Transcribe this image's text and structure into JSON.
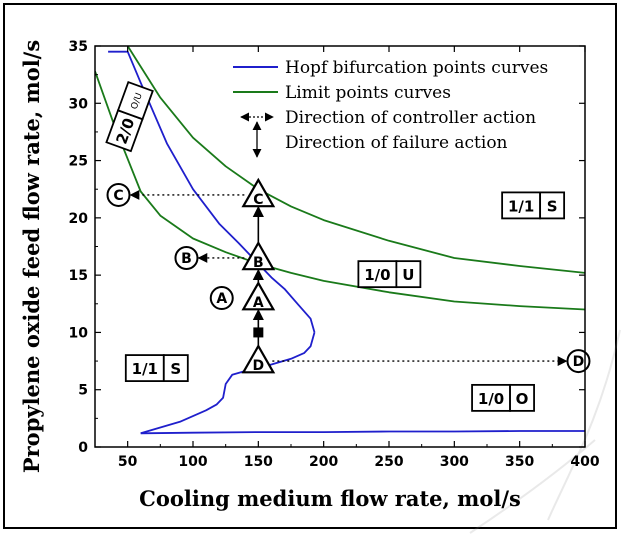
{
  "chart_data": {
    "type": "line",
    "xlabel": "Cooling medium flow rate, mol/s",
    "ylabel": "Propylene oxide feed flow rate, mol/s",
    "xlim": [
      25,
      400
    ],
    "ylim": [
      0,
      35
    ],
    "x_ticks": [
      50,
      100,
      150,
      200,
      250,
      300,
      350,
      400
    ],
    "y_ticks": [
      0,
      5,
      10,
      15,
      20,
      25,
      30,
      35
    ],
    "colors": {
      "hopf": "#1f1fcc",
      "limit": "#1a7a1a",
      "axis": "#000000"
    },
    "legend": {
      "position": "top-right",
      "entries": [
        {
          "label": "Hopf bifurcation points curves",
          "style": "line",
          "series": "hopf"
        },
        {
          "label": "Limit points curves",
          "style": "line",
          "series": "limit"
        },
        {
          "label": "Direction of controller action",
          "style": "dotted-arrow"
        },
        {
          "label": "Direction of failure action",
          "style": "vertical-arrow"
        }
      ]
    },
    "series": [
      {
        "name": "Hopf upper branch",
        "kind": "hopf",
        "x": [
          35,
          40,
          50,
          60,
          80,
          100,
          120,
          135,
          150,
          160,
          170,
          180,
          190,
          193
        ],
        "y": [
          34.5,
          34.5,
          34.5,
          31.8,
          26.5,
          22.5,
          19.5,
          17.8,
          16,
          14.8,
          13.8,
          12.5,
          11.2,
          10
        ]
      },
      {
        "name": "Hopf lower branch",
        "kind": "hopf",
        "x": [
          193,
          190,
          185,
          175,
          160,
          145,
          130,
          125,
          123,
          118,
          110,
          100,
          90,
          75,
          60
        ],
        "y": [
          10,
          8.8,
          8.2,
          7.7,
          7.2,
          6.8,
          6.3,
          5.5,
          4.3,
          3.7,
          3.2,
          2.7,
          2.2,
          1.7,
          1.2
        ]
      },
      {
        "name": "Hopf bottom curve",
        "kind": "hopf",
        "x": [
          60,
          100,
          150,
          200,
          250,
          300,
          350,
          400
        ],
        "y": [
          1.2,
          1.25,
          1.3,
          1.3,
          1.35,
          1.35,
          1.4,
          1.4
        ]
      },
      {
        "name": "Limit points upper",
        "kind": "limit",
        "x": [
          50,
          60,
          75,
          100,
          125,
          150,
          175,
          200,
          250,
          300,
          350,
          400
        ],
        "y": [
          35,
          33.2,
          30.5,
          27,
          24.5,
          22.5,
          21,
          19.8,
          18,
          16.5,
          15.8,
          15.2
        ]
      },
      {
        "name": "Limit points lower",
        "kind": "limit",
        "x": [
          25,
          40,
          60,
          75,
          100,
          125,
          150,
          175,
          200,
          250,
          300,
          350,
          400
        ],
        "y": [
          32.8,
          28,
          22.3,
          20.2,
          18.2,
          17,
          16,
          15.2,
          14.5,
          13.5,
          12.7,
          12.3,
          12
        ]
      }
    ],
    "points": [
      {
        "label": "C",
        "shape": "triangle",
        "x": 150,
        "y": 22
      },
      {
        "label": "B",
        "shape": "triangle",
        "x": 150,
        "y": 16.5
      },
      {
        "label": "A",
        "shape": "triangle",
        "x": 150,
        "y": 13
      },
      {
        "label": "D",
        "shape": "triangle",
        "x": 150,
        "y": 7.5
      },
      {
        "label": "C",
        "shape": "circle",
        "x": 43,
        "y": 22
      },
      {
        "label": "B",
        "shape": "circle",
        "x": 95,
        "y": 16.5
      },
      {
        "label": "A",
        "shape": "circle",
        "x": 122,
        "y": 13
      },
      {
        "label": "D",
        "shape": "circle",
        "x": 395,
        "y": 7.5
      }
    ],
    "controller_arrows": [
      {
        "from": [
          150,
          22
        ],
        "to": [
          43,
          22
        ]
      },
      {
        "from": [
          150,
          16.5
        ],
        "to": [
          95,
          16.5
        ]
      },
      {
        "from": [
          150,
          7.5
        ],
        "to": [
          395,
          7.5
        ]
      }
    ],
    "failure_arrows": [
      {
        "from": [
          150,
          7.5
        ],
        "to": [
          150,
          13
        ]
      },
      {
        "from": [
          150,
          13
        ],
        "to": [
          150,
          16.5
        ]
      },
      {
        "from": [
          150,
          16.5
        ],
        "to": [
          150,
          22
        ]
      }
    ],
    "failure_marker": {
      "x": 150,
      "y": 10
    },
    "region_labels": [
      {
        "parts": [
          "2/0",
          "O/U"
        ],
        "x": 52,
        "y": 29,
        "rotate": true
      },
      {
        "parts": [
          "1/1",
          "S"
        ],
        "x": 358,
        "y": 21
      },
      {
        "parts": [
          "1/0",
          "U"
        ],
        "x": 248,
        "y": 15
      },
      {
        "parts": [
          "1/1",
          "S"
        ],
        "x": 70,
        "y": 6.8
      },
      {
        "parts": [
          "1/0",
          "O"
        ],
        "x": 335,
        "y": 4.2
      }
    ]
  }
}
